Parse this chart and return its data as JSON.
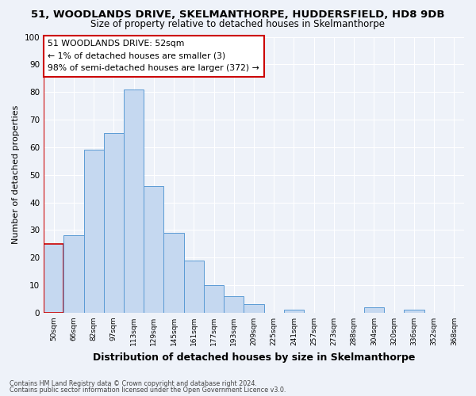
{
  "title": "51, WOODLANDS DRIVE, SKELMANTHORPE, HUDDERSFIELD, HD8 9DB",
  "subtitle": "Size of property relative to detached houses in Skelmanthorpe",
  "xlabel": "Distribution of detached houses by size in Skelmanthorpe",
  "ylabel": "Number of detached properties",
  "bin_labels": [
    "50sqm",
    "66sqm",
    "82sqm",
    "97sqm",
    "113sqm",
    "129sqm",
    "145sqm",
    "161sqm",
    "177sqm",
    "193sqm",
    "209sqm",
    "225sqm",
    "241sqm",
    "257sqm",
    "273sqm",
    "288sqm",
    "304sqm",
    "320sqm",
    "336sqm",
    "352sqm",
    "368sqm"
  ],
  "bar_values": [
    25,
    28,
    59,
    65,
    81,
    46,
    29,
    19,
    10,
    6,
    3,
    0,
    1,
    0,
    0,
    0,
    2,
    0,
    1,
    0,
    0
  ],
  "bar_color": "#c5d8f0",
  "bar_edge_color": "#5b9bd5",
  "highlight_edge_color": "#cc0000",
  "ylim": [
    0,
    100
  ],
  "yticks": [
    0,
    10,
    20,
    30,
    40,
    50,
    60,
    70,
    80,
    90,
    100
  ],
  "annotation_text": "51 WOODLANDS DRIVE: 52sqm\n← 1% of detached houses are smaller (3)\n98% of semi-detached houses are larger (372) →",
  "annotation_box_color": "#ffffff",
  "annotation_box_edge_color": "#cc0000",
  "footer_line1": "Contains HM Land Registry data © Crown copyright and database right 2024.",
  "footer_line2": "Contains public sector information licensed under the Open Government Licence v3.0.",
  "background_color": "#eef2f9",
  "grid_color": "#ffffff",
  "title_fontsize": 9.5,
  "subtitle_fontsize": 8.5,
  "ylabel_fontsize": 8,
  "xlabel_fontsize": 9
}
